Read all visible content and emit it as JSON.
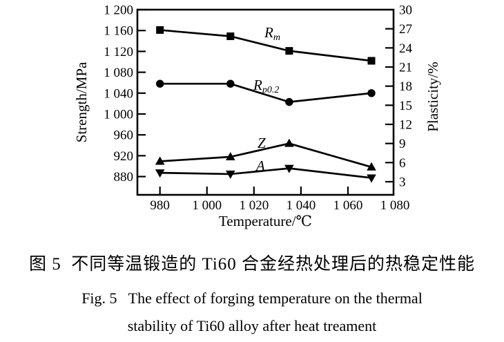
{
  "figure": {
    "caption_zh": "图 5  不同等温锻造的 Ti60 合金经热处理后的热稳定性能",
    "caption_en_line1": "Fig. 5   The effect of forging temperature on the thermal",
    "caption_en_line2": "stability of Ti60 alloy after heat treament"
  },
  "colors": {
    "ink": "#000000",
    "background": "#ffffff"
  },
  "chart_data": {
    "type": "line",
    "title": "",
    "xlabel": "Temperature/℃",
    "ylabel_left": "Strength/MPa",
    "ylabel_right": "Plasticity/%",
    "x": [
      980,
      1010,
      1035,
      1070
    ],
    "x_range": [
      970,
      1080
    ],
    "left_axis_range": [
      845,
      1200
    ],
    "right_axis_range": [
      3,
      30
    ],
    "grid": false,
    "legend_position": "inline-labels",
    "x_ticks": {
      "values": [
        980,
        1000,
        1020,
        1040,
        1060,
        1080
      ],
      "labels": [
        "980",
        "1 000",
        "1 020",
        "1 040",
        "1 060",
        "1 080"
      ]
    },
    "left_ticks": {
      "values": [
        1200,
        1160,
        1120,
        1080,
        1040,
        1000,
        960,
        920,
        880
      ],
      "labels": [
        "1 200",
        "1 160",
        "1 120",
        "1 080",
        "1 040",
        "1 000",
        "960",
        "920",
        "880"
      ]
    },
    "right_ticks": {
      "values": [
        30,
        27,
        24,
        21,
        18,
        15,
        12,
        9,
        6,
        3
      ],
      "labels": [
        "30",
        "27",
        "24",
        "21",
        "18",
        "15",
        "12",
        "9",
        "6",
        "3"
      ]
    },
    "series": [
      {
        "name": "Rm",
        "label_main": "R",
        "label_sub": "m",
        "axis": "left",
        "marker": "square",
        "values": [
          1161,
          1149,
          1121,
          1102
        ]
      },
      {
        "name": "Rp02",
        "label_main": "R",
        "label_sub": "p0.2",
        "axis": "left",
        "marker": "circle",
        "values": [
          1058,
          1058,
          1023,
          1040
        ]
      },
      {
        "name": "Z",
        "label_main": "Z",
        "label_sub": "",
        "axis": "right",
        "marker": "triangle-up",
        "values": [
          6.2,
          6.9,
          9.0,
          5.3
        ]
      },
      {
        "name": "A",
        "label_main": "A",
        "label_sub": "",
        "axis": "right",
        "marker": "triangle-down",
        "values": [
          4.4,
          4.2,
          5.1,
          3.6
        ]
      }
    ]
  }
}
